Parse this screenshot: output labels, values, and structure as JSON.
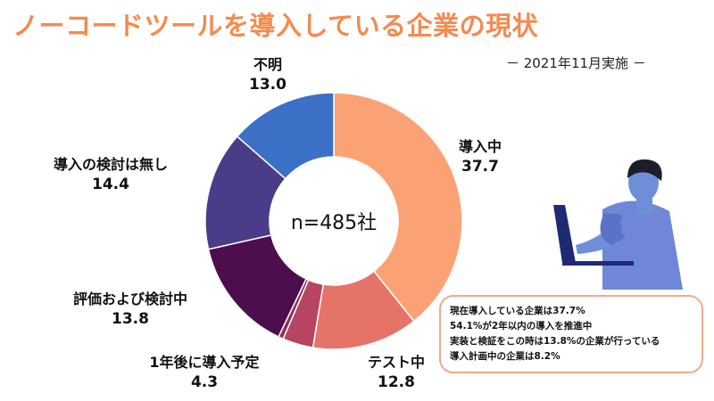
{
  "title": "ノーコードツールを導入している企業の現状",
  "survey_date": "－ 2021年11月実施 －",
  "center_label": "n=485社",
  "chart_data": {
    "type": "pie",
    "title": "ノーコードツールを導入している企業の現状",
    "categories": [
      "導入中",
      "テスト中",
      "1年後に導入予定",
      "評価および検討中",
      "導入の検討は無し",
      "不明"
    ],
    "values": [
      37.7,
      12.8,
      4.3,
      13.8,
      14.4,
      13.0
    ],
    "inner_slices": [
      {
        "parent": "1年後に導入予定",
        "values": [
          3.7,
          0.6
        ]
      }
    ],
    "colors": [
      "#fba275",
      "#e67368",
      "#b74460",
      "#4c0e4c",
      "#4b3c8a",
      "#3c6fc6"
    ],
    "legend": "none",
    "n": 485
  },
  "labels": [
    {
      "name": "導入中",
      "value": "37.7"
    },
    {
      "name": "テスト中",
      "value": "12.8"
    },
    {
      "name": "1年後に導入予定",
      "value": "4.3"
    },
    {
      "name": "評価および検討中",
      "value": "13.8"
    },
    {
      "name": "導入の検討は無し",
      "value": "14.4"
    },
    {
      "name": "不明",
      "value": "13.0"
    }
  ],
  "note": {
    "lines": [
      "現在導入している企業は37.7%",
      "54.1%が2年以内の導入を推進中",
      "実装と検証をこの時は13.8%の企業が行っている",
      "導入計画中の企業は8.2%"
    ],
    "border_color": "#f2a98a"
  },
  "illustration": {
    "icon": "person-with-laptop-icon",
    "shirt_color": "#6f87d6",
    "hair_color": "#1d1d2b",
    "skin_color": "#6d8fd8"
  }
}
